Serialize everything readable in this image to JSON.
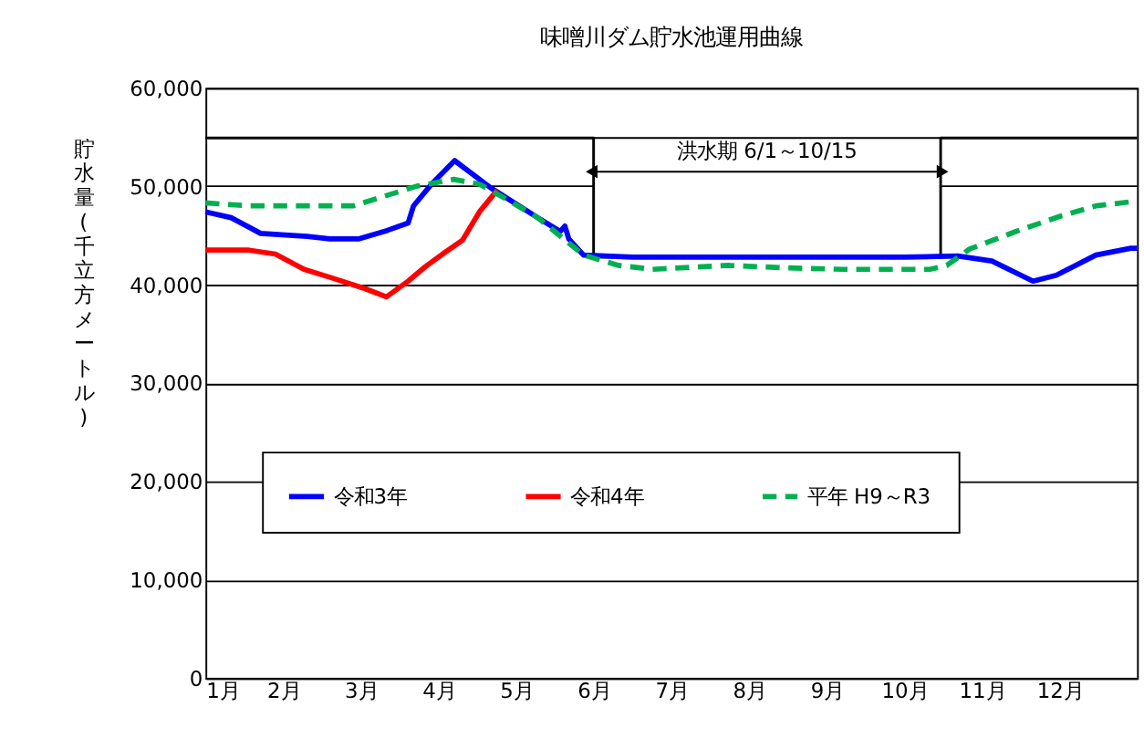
{
  "chart_data": {
    "type": "line",
    "title": "味噌川ダム貯水池運用曲線",
    "ylabel": "貯水量(千立方メートル)",
    "xlim": [
      1,
      13
    ],
    "ylim": [
      0,
      60000
    ],
    "yticks": [
      0,
      {
        "value": 10000,
        "label": "10,000"
      },
      {
        "value": 20000,
        "label": "20,000"
      },
      {
        "value": 30000,
        "label": "30,000"
      },
      {
        "value": 40000,
        "label": "40,000"
      },
      {
        "value": 50000,
        "label": "50,000"
      },
      {
        "value": 60000,
        "label": "60,000"
      }
    ],
    "xticks": [
      {
        "value": 1,
        "label": "1月"
      },
      {
        "value": 2,
        "label": "2月"
      },
      {
        "value": 3,
        "label": "3月"
      },
      {
        "value": 4,
        "label": "4月"
      },
      {
        "value": 5,
        "label": "5月"
      },
      {
        "value": 6,
        "label": "6月"
      },
      {
        "value": 7,
        "label": "7月"
      },
      {
        "value": 8,
        "label": "8月"
      },
      {
        "value": 9,
        "label": "9月"
      },
      {
        "value": 10,
        "label": "10月"
      },
      {
        "value": 11,
        "label": "11月"
      },
      {
        "value": 12,
        "label": "12月"
      }
    ],
    "grid": "y",
    "legend": "bottom",
    "marker": "none",
    "bands": [
      {
        "axis": "x",
        "from": 6,
        "to": 10.47,
        "label": "洪水期  6/1～10/15",
        "color": "#ffffff"
      }
    ],
    "series": [
      {
        "color": "#000000",
        "line_style": "solid",
        "x": [
          1,
          6,
          6,
          10.47,
          10.47,
          13
        ],
        "values": [
          54900,
          54900,
          42800,
          42800,
          54900,
          54900
        ]
      },
      {
        "name": "令和3年",
        "color": "#0000ff",
        "line_style": "solid",
        "x": [
          1.0,
          1.33,
          1.71,
          2.31,
          2.6,
          2.98,
          3.34,
          3.61,
          3.68,
          3.9,
          4.21,
          4.68,
          5.28,
          5.57,
          5.63,
          5.68,
          5.87,
          6.5,
          7,
          8,
          9,
          10,
          10.69,
          11.13,
          11.66,
          11.96,
          12.47,
          12.92,
          13
        ],
        "values": [
          47400,
          46800,
          45200,
          44900,
          44650,
          44650,
          45500,
          46250,
          48000,
          50100,
          52600,
          49800,
          46800,
          45400,
          45950,
          44650,
          43000,
          42800,
          42800,
          42800,
          42800,
          42800,
          42900,
          42400,
          40350,
          40950,
          43000,
          43700,
          43700
        ]
      },
      {
        "name": "令和4年",
        "color": "#ff0000",
        "line_style": "solid",
        "x": [
          1.0,
          1.56,
          1.9,
          2.27,
          2.6,
          3.05,
          3.33,
          3.61,
          3.83,
          4.09,
          4.31,
          4.53,
          4.76
        ],
        "values": [
          43500,
          43500,
          43100,
          41550,
          40750,
          39600,
          38750,
          40350,
          41800,
          43300,
          44500,
          47400,
          49600
        ]
      },
      {
        "name": "平年 H9～R3",
        "color": "#00b050",
        "line_style": "dashed",
        "x": [
          1.0,
          1.56,
          2.9,
          3.27,
          3.72,
          4.2,
          4.53,
          4.83,
          5.28,
          5.87,
          6.32,
          6.76,
          7.73,
          8.47,
          9.21,
          10.33,
          10.55,
          10.84,
          11.44,
          12.03,
          12.47,
          12.96
        ],
        "values": [
          48300,
          48000,
          48000,
          48900,
          50000,
          50700,
          50200,
          48900,
          46800,
          43000,
          41950,
          41550,
          41950,
          41700,
          41550,
          41550,
          41950,
          43600,
          45400,
          47000,
          48000,
          48450
        ]
      }
    ]
  }
}
